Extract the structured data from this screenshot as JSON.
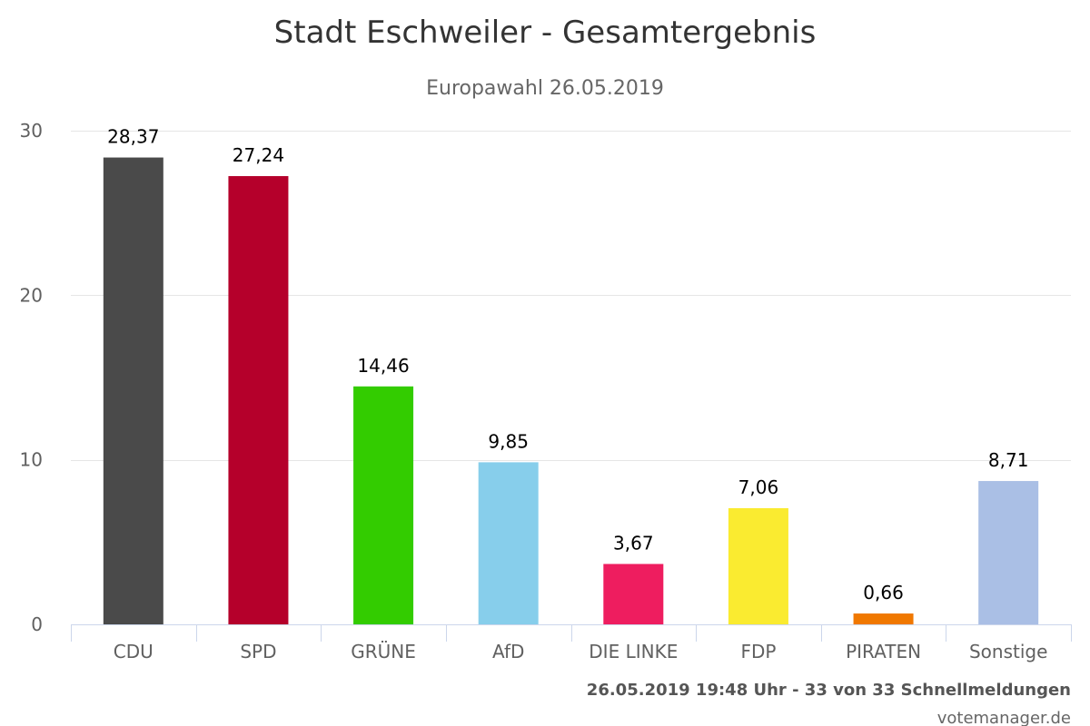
{
  "chart_data": {
    "type": "bar",
    "title": "Stadt Eschweiler - Gesamtergebnis",
    "subtitle": "Europawahl 26.05.2019",
    "categories": [
      "CDU",
      "SPD",
      "GRÜNE",
      "AfD",
      "DIE LINKE",
      "FDP",
      "PIRATEN",
      "Sonstige"
    ],
    "values": [
      28.37,
      27.24,
      14.46,
      9.85,
      3.67,
      7.06,
      0.66,
      8.71
    ],
    "value_labels": [
      "28,37",
      "27,24",
      "14,46",
      "9,85",
      "3,67",
      "7,06",
      "0,66",
      "8,71"
    ],
    "colors": [
      "#4a4a4a",
      "#b5002b",
      "#33cc00",
      "#87ceeb",
      "#ee1d5f",
      "#faeb30",
      "#f07800",
      "#aabfe5"
    ],
    "ylim": [
      0,
      30
    ],
    "yticks": [
      0,
      10,
      20,
      30
    ],
    "xlabel": "",
    "ylabel": "",
    "grid": true,
    "legend": "none"
  },
  "footer": {
    "status": "26.05.2019 19:48 Uhr - 33 von 33 Schnellmeldungen",
    "credit": "votemanager.de"
  }
}
